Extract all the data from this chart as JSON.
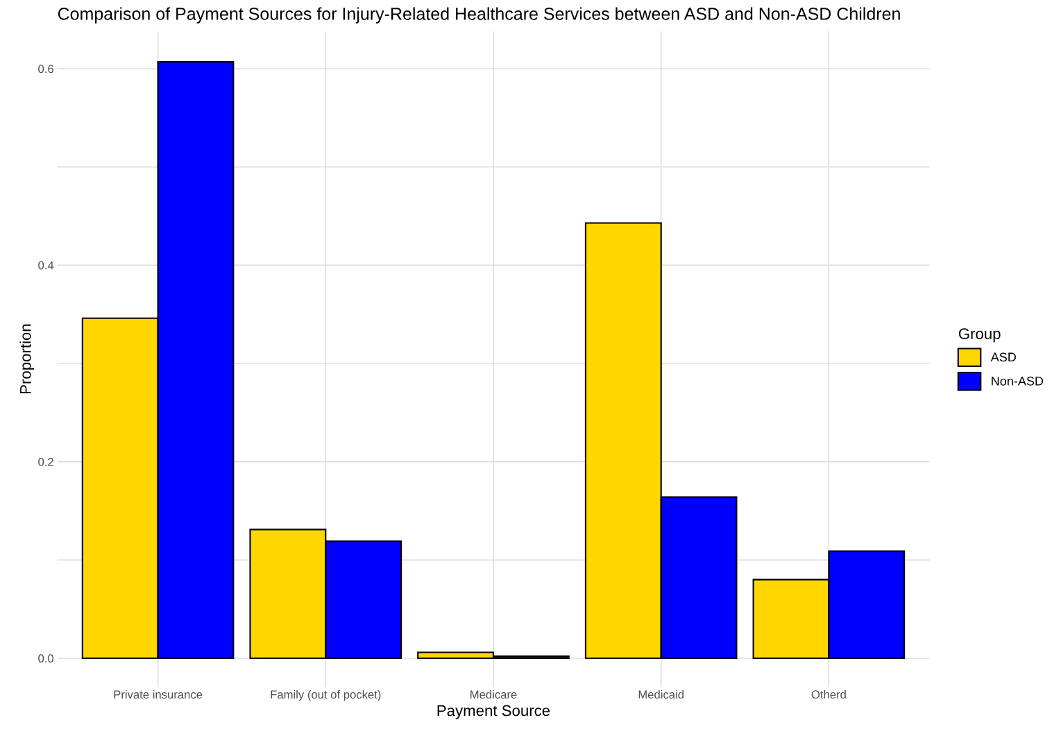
{
  "chart_data": {
    "type": "bar",
    "title": "Comparison of Payment Sources for Injury-Related Healthcare Services between ASD and Non-ASD Children",
    "xlabel": "Payment Source",
    "ylabel": "Proportion",
    "legend_title": "Group",
    "categories": [
      "Private insurance",
      "Family (out of pocket)",
      "Medicare",
      "Medicaid",
      "Otherd"
    ],
    "series": [
      {
        "name": "ASD",
        "color": "#ffd700",
        "values": [
          0.346,
          0.131,
          0.006,
          0.443,
          0.08
        ]
      },
      {
        "name": "Non-ASD",
        "color": "#0000ff",
        "values": [
          0.607,
          0.119,
          0.002,
          0.164,
          0.109
        ]
      }
    ],
    "ylim": [
      -0.029,
      0.638
    ],
    "yticks": [
      {
        "value": 0.0,
        "label": "0.0"
      },
      {
        "value": 0.1,
        "label": null
      },
      {
        "value": 0.2,
        "label": "0.2"
      },
      {
        "value": 0.3,
        "label": null
      },
      {
        "value": 0.4,
        "label": "0.4"
      },
      {
        "value": 0.5,
        "label": null
      },
      {
        "value": 0.6,
        "label": "0.6"
      }
    ],
    "grid": true,
    "legend": "right"
  }
}
